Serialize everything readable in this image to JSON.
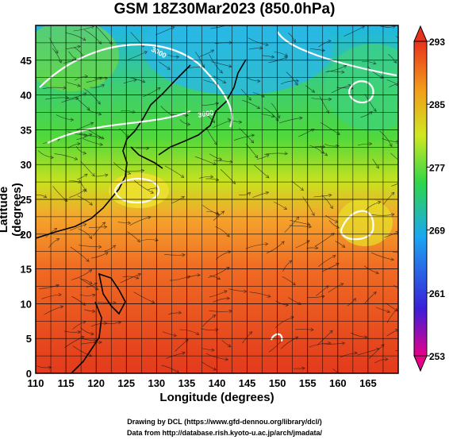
{
  "title": "GSM 18Z30Mar2023 (850.0hPa)",
  "axes": {
    "xlabel": "Longitude (degrees)",
    "ylabel": "Latitude (degrees)",
    "xticks": [
      "110",
      "115",
      "120",
      "125",
      "130",
      "135",
      "140",
      "145",
      "150",
      "155",
      "160",
      "165"
    ],
    "yticks": [
      "0",
      "5",
      "10",
      "15",
      "20",
      "25",
      "30",
      "35",
      "40",
      "45"
    ]
  },
  "colorbar": {
    "labels": [
      "293",
      "285",
      "277",
      "269",
      "261",
      "253"
    ],
    "colors": [
      "#e8008a",
      "#3a1fd8",
      "#1aa7f2",
      "#2fd64a",
      "#cfe820",
      "#f29a1a",
      "#e8321c"
    ]
  },
  "contour_labels": [
    "3000",
    "3000"
  ],
  "credits": {
    "line1": "Drawing by DCL (https://www.gfd-dennou.org/library/dcl/)",
    "line2": "Data from http://database.rish.kyoto-u.ac.jp/arch/jmadata/"
  },
  "chart_data": {
    "type": "heatmap",
    "title": "GSM 18Z30Mar2023 (850.0hPa)",
    "xlabel": "Longitude (degrees)",
    "ylabel": "Latitude (degrees)",
    "xlim": [
      110,
      170
    ],
    "ylim": [
      0,
      50
    ],
    "colorbar_range": [
      253,
      293
    ],
    "colorbar_ticks": [
      293,
      285,
      277,
      269,
      261,
      253
    ],
    "grid": true
  }
}
